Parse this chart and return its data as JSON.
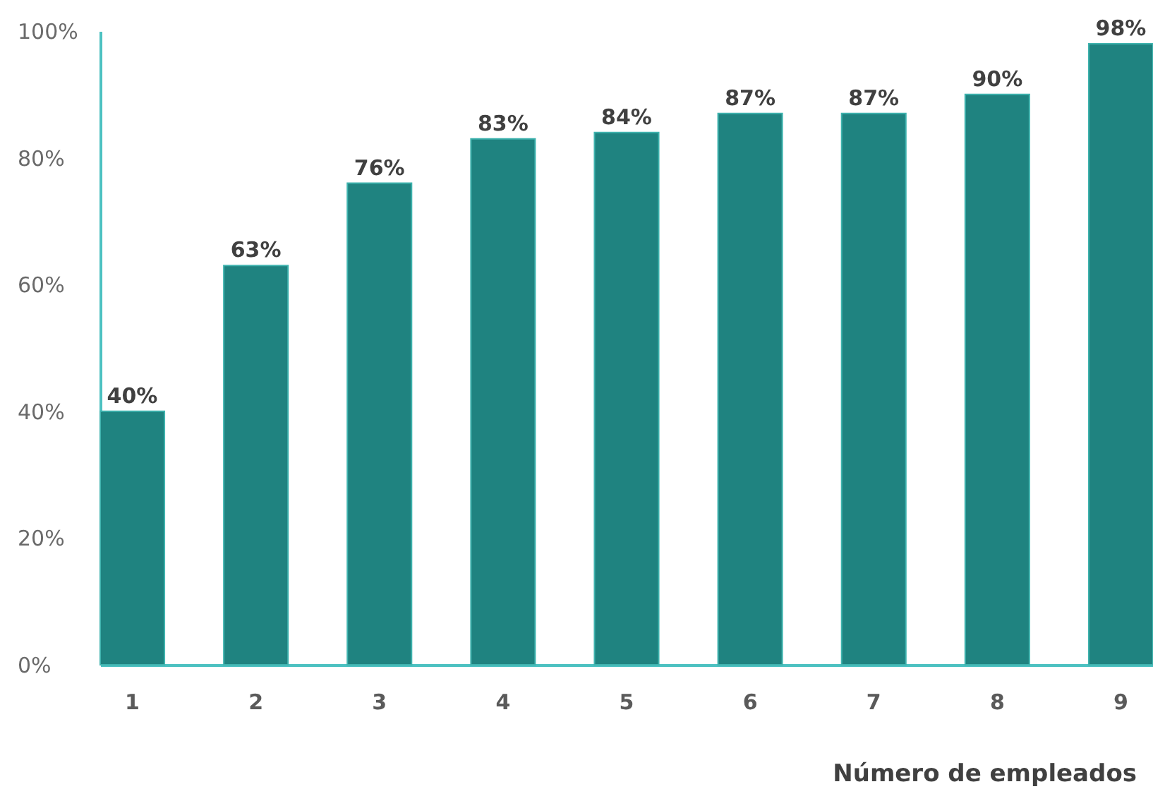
{
  "chart_data": {
    "type": "bar",
    "xlabel": "Número de empleados",
    "categories": [
      "1",
      "2",
      "3",
      "4",
      "5",
      "6",
      "7",
      "8",
      "9"
    ],
    "values": [
      40,
      63,
      76,
      83,
      84,
      87,
      87,
      90,
      98
    ],
    "value_labels": [
      "40%",
      "63%",
      "76%",
      "83%",
      "84%",
      "87%",
      "87%",
      "90%",
      "98%"
    ],
    "color": "#1f8380",
    "ylim": [
      0,
      100
    ],
    "yticks": [
      {
        "value": 0,
        "label": "0%"
      },
      {
        "value": 20,
        "label": "20%"
      },
      {
        "value": 40,
        "label": "40%"
      },
      {
        "value": 60,
        "label": "60%"
      },
      {
        "value": 80,
        "label": "80%"
      },
      {
        "value": 100,
        "label": "100%"
      }
    ],
    "grid": false
  }
}
